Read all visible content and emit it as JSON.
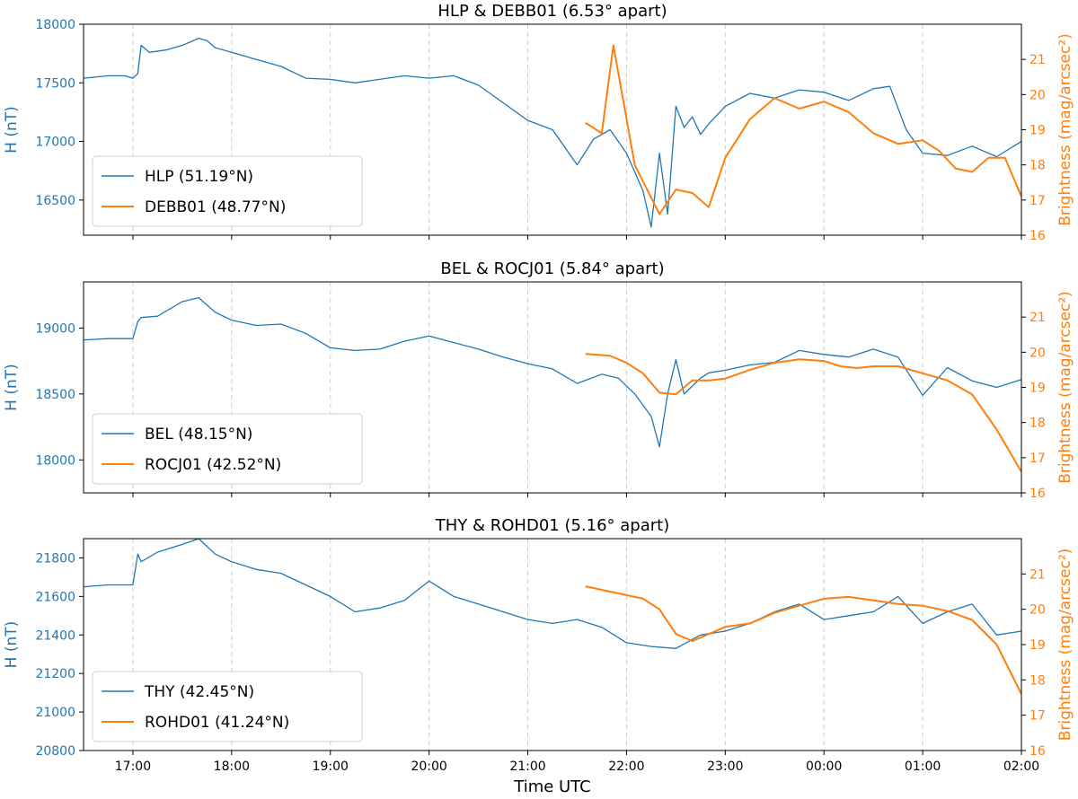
{
  "colors": {
    "h_series": "#1f77b4",
    "brightness_series": "#ff7f0e",
    "axis": "#000000",
    "grid": "#cccccc"
  },
  "x_axis": {
    "label": "Time UTC",
    "range": [
      "16:30",
      "02:00"
    ],
    "ticks": [
      "17:00",
      "18:00",
      "19:00",
      "20:00",
      "21:00",
      "22:00",
      "23:00",
      "00:00",
      "01:00",
      "02:00"
    ]
  },
  "chart_data": [
    {
      "type": "line",
      "title": "HLP & DEBB01 (6.53° apart)",
      "ylabel": "H (nT)",
      "y2label": "Brightness (mag/arcsec²)",
      "ylim": [
        16200,
        18000
      ],
      "y2lim": [
        16,
        22
      ],
      "yticks": [
        16500,
        17000,
        17500,
        18000
      ],
      "y2ticks": [
        16,
        17,
        18,
        19,
        20,
        21
      ],
      "grid": "vertical dashed",
      "legend_position": "lower-left",
      "series": [
        {
          "name": "HLP (51.19°N)",
          "axis": "left",
          "color": "#1f77b4",
          "x": [
            "16:30",
            "16:45",
            "16:55",
            "17:00",
            "17:03",
            "17:05",
            "17:10",
            "17:20",
            "17:30",
            "17:40",
            "17:45",
            "17:50",
            "18:00",
            "18:15",
            "18:30",
            "18:45",
            "19:00",
            "19:15",
            "19:30",
            "19:45",
            "20:00",
            "20:15",
            "20:30",
            "20:45",
            "21:00",
            "21:15",
            "21:30",
            "21:40",
            "21:50",
            "22:00",
            "22:10",
            "22:15",
            "22:20",
            "22:25",
            "22:30",
            "22:35",
            "22:40",
            "22:45",
            "22:50",
            "23:00",
            "23:15",
            "23:30",
            "23:45",
            "00:00",
            "00:15",
            "00:30",
            "00:40",
            "00:50",
            "01:00",
            "01:15",
            "01:30",
            "01:45",
            "02:00"
          ],
          "y": [
            17540,
            17560,
            17560,
            17540,
            17580,
            17820,
            17760,
            17780,
            17820,
            17880,
            17860,
            17800,
            17760,
            17700,
            17640,
            17540,
            17530,
            17500,
            17530,
            17560,
            17540,
            17560,
            17480,
            17330,
            17180,
            17100,
            16800,
            17020,
            17100,
            16900,
            16580,
            16270,
            16900,
            16380,
            17300,
            17120,
            17210,
            17060,
            17150,
            17300,
            17410,
            17370,
            17440,
            17420,
            17350,
            17450,
            17470,
            17100,
            16900,
            16880,
            16960,
            16870,
            17000
          ]
        },
        {
          "name": "DEBB01 (48.77°N)",
          "axis": "right",
          "color": "#ff7f0e",
          "x": [
            "21:35",
            "21:45",
            "21:52",
            "22:05",
            "22:20",
            "22:30",
            "22:40",
            "22:50",
            "23:00",
            "23:15",
            "23:30",
            "23:45",
            "00:00",
            "00:15",
            "00:30",
            "00:45",
            "01:00",
            "01:10",
            "01:20",
            "01:30",
            "01:40",
            "01:50",
            "02:00"
          ],
          "y": [
            19.2,
            18.9,
            21.4,
            18.0,
            16.6,
            17.3,
            17.2,
            16.8,
            18.2,
            19.3,
            19.9,
            19.6,
            19.8,
            19.5,
            18.9,
            18.6,
            18.7,
            18.4,
            17.9,
            17.8,
            18.2,
            18.2,
            17.1
          ]
        }
      ]
    },
    {
      "type": "line",
      "title": "BEL & ROCJ01 (5.84° apart)",
      "ylabel": "H (nT)",
      "y2label": "Brightness (mag/arcsec²)",
      "ylim": [
        17750,
        19350
      ],
      "y2lim": [
        16,
        22
      ],
      "yticks": [
        18000,
        18500,
        19000
      ],
      "y2ticks": [
        16,
        17,
        18,
        19,
        20,
        21
      ],
      "grid": "vertical dashed",
      "legend_position": "lower-left",
      "series": [
        {
          "name": "BEL (48.15°N)",
          "axis": "left",
          "color": "#1f77b4",
          "x": [
            "16:30",
            "16:45",
            "17:00",
            "17:03",
            "17:05",
            "17:15",
            "17:30",
            "17:40",
            "17:50",
            "18:00",
            "18:15",
            "18:30",
            "18:45",
            "19:00",
            "19:15",
            "19:30",
            "19:45",
            "20:00",
            "20:15",
            "20:30",
            "20:45",
            "21:00",
            "21:15",
            "21:30",
            "21:45",
            "21:55",
            "22:05",
            "22:15",
            "22:20",
            "22:25",
            "22:30",
            "22:35",
            "22:40",
            "22:45",
            "22:50",
            "23:00",
            "23:15",
            "23:30",
            "23:45",
            "00:00",
            "00:15",
            "00:30",
            "00:45",
            "01:00",
            "01:15",
            "01:30",
            "01:45",
            "02:00"
          ],
          "y": [
            18910,
            18920,
            18920,
            19050,
            19080,
            19090,
            19200,
            19230,
            19120,
            19060,
            19020,
            19030,
            18960,
            18850,
            18830,
            18840,
            18900,
            18940,
            18890,
            18840,
            18780,
            18730,
            18690,
            18580,
            18650,
            18620,
            18500,
            18330,
            18100,
            18500,
            18760,
            18500,
            18560,
            18620,
            18660,
            18680,
            18720,
            18740,
            18830,
            18800,
            18780,
            18840,
            18780,
            18490,
            18700,
            18600,
            18550,
            18610
          ]
        },
        {
          "name": "ROCJ01 (42.52°N)",
          "axis": "right",
          "color": "#ff7f0e",
          "x": [
            "21:35",
            "21:50",
            "22:00",
            "22:10",
            "22:20",
            "22:30",
            "22:40",
            "22:50",
            "23:00",
            "23:15",
            "23:30",
            "23:45",
            "00:00",
            "00:10",
            "00:20",
            "00:30",
            "00:45",
            "01:00",
            "01:15",
            "01:30",
            "01:45",
            "02:00"
          ],
          "y": [
            19.95,
            19.9,
            19.7,
            19.4,
            18.85,
            18.8,
            19.2,
            19.2,
            19.25,
            19.5,
            19.7,
            19.8,
            19.75,
            19.6,
            19.55,
            19.6,
            19.6,
            19.4,
            19.2,
            18.8,
            17.8,
            16.6
          ]
        }
      ]
    },
    {
      "type": "line",
      "title": "THY & ROHD01 (5.16° apart)",
      "ylabel": "H (nT)",
      "y2label": "Brightness (mag/arcsec²)",
      "ylim": [
        20800,
        21900
      ],
      "y2lim": [
        16,
        22
      ],
      "yticks": [
        20800,
        21000,
        21200,
        21400,
        21600,
        21800
      ],
      "y2ticks": [
        16,
        17,
        18,
        19,
        20,
        21
      ],
      "grid": "vertical dashed",
      "legend_position": "lower-left",
      "series": [
        {
          "name": "THY (42.45°N)",
          "axis": "left",
          "color": "#1f77b4",
          "x": [
            "16:30",
            "16:45",
            "17:00",
            "17:03",
            "17:05",
            "17:15",
            "17:30",
            "17:40",
            "17:50",
            "18:00",
            "18:15",
            "18:30",
            "18:45",
            "19:00",
            "19:15",
            "19:30",
            "19:45",
            "20:00",
            "20:15",
            "20:30",
            "20:45",
            "21:00",
            "21:15",
            "21:30",
            "21:45",
            "22:00",
            "22:15",
            "22:30",
            "22:45",
            "23:00",
            "23:15",
            "23:30",
            "23:45",
            "00:00",
            "00:15",
            "00:30",
            "00:45",
            "01:00",
            "01:15",
            "01:30",
            "01:45",
            "02:00"
          ],
          "y": [
            21650,
            21660,
            21660,
            21820,
            21780,
            21830,
            21870,
            21900,
            21820,
            21780,
            21740,
            21720,
            21660,
            21600,
            21520,
            21540,
            21580,
            21680,
            21600,
            21560,
            21520,
            21480,
            21460,
            21480,
            21440,
            21360,
            21340,
            21330,
            21400,
            21420,
            21460,
            21520,
            21560,
            21480,
            21500,
            21520,
            21600,
            21460,
            21520,
            21560,
            21400,
            21420
          ]
        },
        {
          "name": "ROHD01 (41.24°N)",
          "axis": "right",
          "color": "#ff7f0e",
          "x": [
            "21:35",
            "21:50",
            "22:00",
            "22:10",
            "22:20",
            "22:30",
            "22:40",
            "22:50",
            "23:00",
            "23:15",
            "23:30",
            "23:45",
            "00:00",
            "00:15",
            "00:30",
            "00:45",
            "01:00",
            "01:15",
            "01:30",
            "01:45",
            "02:00"
          ],
          "y": [
            20.65,
            20.5,
            20.4,
            20.3,
            20.0,
            19.3,
            19.1,
            19.3,
            19.5,
            19.6,
            19.9,
            20.1,
            20.3,
            20.35,
            20.25,
            20.15,
            20.1,
            19.95,
            19.7,
            19.0,
            17.6
          ]
        }
      ]
    }
  ]
}
